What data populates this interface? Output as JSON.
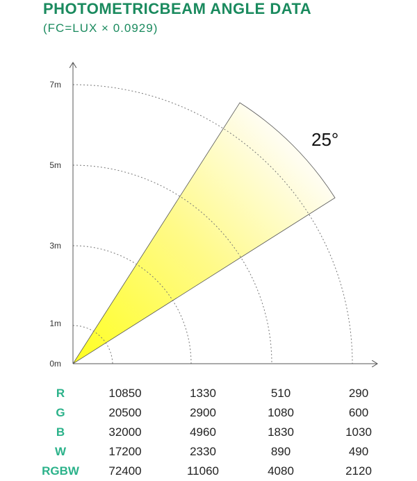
{
  "header": {
    "title": "PHOTOMETRICBEAM ANGLE DATA",
    "subtitle": "(FC=LUX × 0.0929)"
  },
  "diagram": {
    "beam_angle_label": "25°",
    "distance_labels": [
      "0m",
      "1m",
      "3m",
      "5m",
      "7m"
    ],
    "beam_color": "#ffff33"
  },
  "table": {
    "rows": [
      {
        "label": "R",
        "values": [
          "10850",
          "1330",
          "510",
          "290"
        ]
      },
      {
        "label": "G",
        "values": [
          "20500",
          "2900",
          "1080",
          "600"
        ]
      },
      {
        "label": "B",
        "values": [
          "32000",
          "4960",
          "1830",
          "1030"
        ]
      },
      {
        "label": "W",
        "values": [
          "17200",
          "2330",
          "890",
          "490"
        ]
      },
      {
        "label": "RGBW",
        "values": [
          "72400",
          "11060",
          "4080",
          "2120"
        ]
      }
    ]
  }
}
